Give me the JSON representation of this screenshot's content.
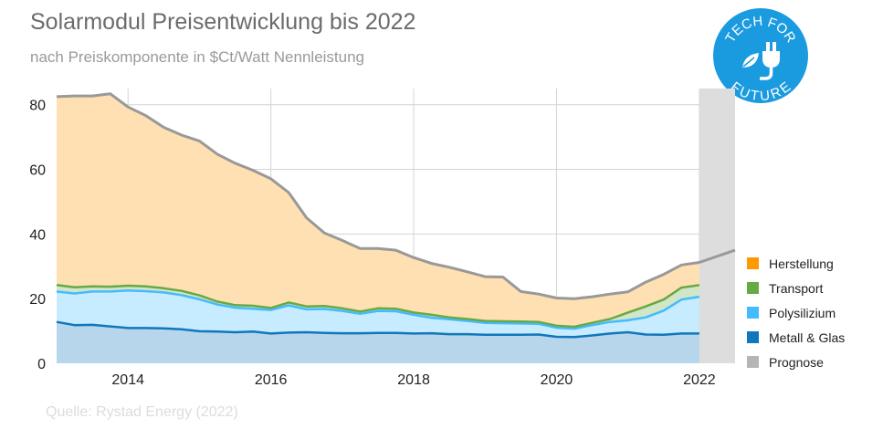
{
  "title": "Solarmodul Preisentwicklung bis 2022",
  "subtitle": "nach Preiskomponente in $Ct/Watt Nennleistung",
  "source": "Quelle: Rystad Energy (2022)",
  "logo": {
    "top_text": "TECH FOR",
    "bottom_text": "FUTURE",
    "color": "#1a9be0",
    "icon": "plug-leaf-icon"
  },
  "colors": {
    "Herstellung": "#ff9900",
    "Transport": "#66aa44",
    "Polysilizium": "#44bbff",
    "Metall & Glas": "#1177bb",
    "Prognose": "#b5b5b5"
  },
  "chart_data": {
    "type": "area",
    "stacked": true,
    "title": "Solarmodul Preisentwicklung bis 2022",
    "xlabel": "",
    "ylabel": "",
    "xlim": [
      2013.0,
      2022.5
    ],
    "ylim": [
      0,
      85
    ],
    "x_ticks": [
      2014,
      2016,
      2018,
      2020,
      2022
    ],
    "y_ticks": [
      0,
      20,
      40,
      60,
      80
    ],
    "grid": true,
    "forecast_start": 2022.0,
    "x": [
      2013.0,
      2013.25,
      2013.5,
      2013.75,
      2014.0,
      2014.25,
      2014.5,
      2014.75,
      2015.0,
      2015.25,
      2015.5,
      2015.75,
      2016.0,
      2016.25,
      2016.5,
      2016.75,
      2017.0,
      2017.25,
      2017.5,
      2017.75,
      2018.0,
      2018.25,
      2018.5,
      2018.75,
      2019.0,
      2019.25,
      2019.5,
      2019.75,
      2020.0,
      2020.25,
      2020.5,
      2020.75,
      2021.0,
      2021.25,
      2021.5,
      2021.75,
      2022.0
    ],
    "series": [
      {
        "name": "Metall & Glas",
        "values": [
          12.8,
          11.8,
          11.9,
          11.4,
          10.9,
          10.9,
          10.8,
          10.5,
          9.9,
          9.8,
          9.6,
          9.8,
          9.2,
          9.5,
          9.6,
          9.4,
          9.3,
          9.3,
          9.4,
          9.4,
          9.2,
          9.3,
          9.0,
          9.0,
          8.8,
          8.8,
          8.8,
          8.9,
          8.2,
          8.1,
          8.6,
          9.2,
          9.6,
          8.9,
          8.8,
          9.2,
          9.2
        ]
      },
      {
        "name": "Polysilizium",
        "values": [
          9.4,
          9.8,
          10.3,
          10.8,
          11.6,
          11.4,
          11.1,
          10.6,
          9.9,
          8.4,
          7.6,
          7.1,
          7.3,
          8.4,
          7.1,
          7.4,
          6.9,
          6.0,
          6.8,
          6.7,
          5.8,
          4.8,
          4.6,
          4.1,
          3.7,
          3.6,
          3.5,
          3.3,
          2.8,
          2.6,
          3.2,
          3.6,
          3.7,
          5.3,
          7.5,
          10.5,
          11.4
        ]
      },
      {
        "name": "Transport",
        "values": [
          2.0,
          1.9,
          1.6,
          1.5,
          1.5,
          1.5,
          1.3,
          1.3,
          1.2,
          0.9,
          0.8,
          0.9,
          0.6,
          0.9,
          0.9,
          0.9,
          0.8,
          0.7,
          0.8,
          0.8,
          0.7,
          0.9,
          0.6,
          0.6,
          0.6,
          0.6,
          0.6,
          0.6,
          0.6,
          0.6,
          0.7,
          0.9,
          2.4,
          3.4,
          3.4,
          3.7,
          3.6
        ]
      },
      {
        "name": "Herstellung",
        "values": [
          58.3,
          59.2,
          58.9,
          59.7,
          55.3,
          52.8,
          49.8,
          48.2,
          47.8,
          45.6,
          43.9,
          41.9,
          40.0,
          34.0,
          27.4,
          22.6,
          21.0,
          19.5,
          18.5,
          18.1,
          17.0,
          15.9,
          15.5,
          14.6,
          13.7,
          13.7,
          9.3,
          8.6,
          8.6,
          8.7,
          8.1,
          7.7,
          6.4,
          7.5,
          7.8,
          7.0,
          7.0
        ]
      }
    ],
    "forecast": {
      "name": "Prognose",
      "x": [
        2022.0,
        2022.5
      ],
      "values": [
        31.2,
        35.0
      ]
    },
    "legend": [
      "Herstellung",
      "Transport",
      "Polysilizium",
      "Metall & Glas",
      "Prognose"
    ],
    "legend_position": "right"
  }
}
